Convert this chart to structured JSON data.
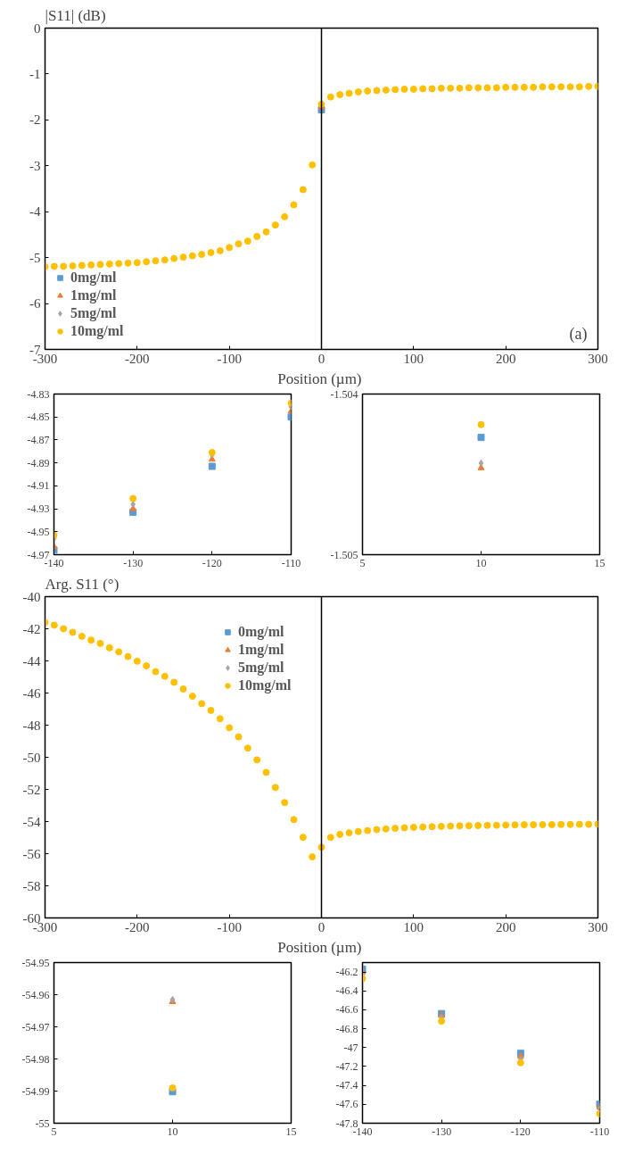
{
  "chart_data": [
    {
      "type": "scatter",
      "ylabel": "|S11| (dB)",
      "xlabel": "Position  (µm)",
      "xlim": [
        -300,
        300
      ],
      "ylim": [
        -7,
        0
      ],
      "xticks": [
        -300,
        -200,
        -100,
        0,
        100,
        200,
        300
      ],
      "yticks": [
        -7,
        -6,
        -5,
        -4,
        -3,
        -2,
        -1,
        0
      ],
      "legend": "bottom left",
      "annotations": [
        "(a)"
      ],
      "ref_lines": [
        {
          "axis": "x",
          "value": 0,
          "color": "#000000"
        }
      ],
      "x": [
        -300,
        -290,
        -280,
        -270,
        -260,
        -250,
        -240,
        -230,
        -220,
        -210,
        -200,
        -190,
        -180,
        -170,
        -160,
        -150,
        -140,
        -130,
        -120,
        -110,
        -100,
        -90,
        -80,
        -70,
        -60,
        -50,
        -40,
        -30,
        -20,
        -10,
        0,
        10,
        20,
        30,
        40,
        50,
        60,
        70,
        80,
        90,
        100,
        110,
        120,
        130,
        140,
        150,
        160,
        170,
        180,
        190,
        200,
        210,
        220,
        230,
        240,
        250,
        260,
        270,
        280,
        290,
        300
      ],
      "series": [
        {
          "name": "0mg/ml",
          "color": "#5b9bd5",
          "marker": "square",
          "values": [
            null,
            null,
            null,
            null,
            null,
            null,
            null,
            null,
            null,
            null,
            null,
            null,
            null,
            null,
            null,
            null,
            null,
            null,
            null,
            null,
            null,
            null,
            null,
            null,
            null,
            null,
            null,
            null,
            null,
            null,
            -1.78,
            null,
            null,
            null,
            null,
            null,
            null,
            null,
            null,
            null,
            null,
            null,
            null,
            null,
            null,
            null,
            null,
            null,
            null,
            null,
            null,
            null,
            null,
            null,
            null,
            null,
            null,
            null,
            null,
            null,
            null
          ]
        },
        {
          "name": "1mg/ml",
          "color": "#ed7d31",
          "marker": "triangle",
          "values": [
            null,
            null,
            null,
            null,
            null,
            null,
            null,
            null,
            null,
            null,
            null,
            null,
            null,
            null,
            null,
            null,
            null,
            null,
            null,
            null,
            null,
            null,
            null,
            null,
            null,
            null,
            null,
            null,
            null,
            null,
            -1.72,
            null,
            null,
            null,
            null,
            null,
            null,
            null,
            null,
            null,
            null,
            null,
            null,
            null,
            null,
            null,
            null,
            null,
            null,
            null,
            null,
            null,
            null,
            null,
            null,
            null,
            null,
            null,
            null,
            null,
            null
          ]
        },
        {
          "name": "5mg/ml",
          "color": "#a5a5a5",
          "marker": "diamond",
          "values": [
            null,
            null,
            null,
            null,
            null,
            null,
            null,
            null,
            null,
            null,
            null,
            null,
            null,
            null,
            null,
            null,
            null,
            null,
            null,
            null,
            null,
            null,
            null,
            null,
            null,
            null,
            null,
            null,
            null,
            null,
            null,
            null,
            null,
            null,
            null,
            null,
            null,
            null,
            null,
            null,
            null,
            null,
            null,
            null,
            null,
            null,
            null,
            null,
            null,
            null,
            null,
            null,
            null,
            null,
            null,
            null,
            null,
            null,
            null,
            null,
            null
          ]
        },
        {
          "name": "10mg/ml",
          "color": "#ffc000",
          "marker": "circle",
          "values": [
            -5.2,
            -5.19,
            -5.19,
            -5.18,
            -5.17,
            -5.16,
            -5.15,
            -5.14,
            -5.13,
            -5.12,
            -5.11,
            -5.09,
            -5.07,
            -5.05,
            -5.02,
            -4.99,
            -4.96,
            -4.93,
            -4.89,
            -4.85,
            -4.78,
            -4.7,
            -4.64,
            -4.54,
            -4.44,
            -4.29,
            -4.11,
            -3.85,
            -3.52,
            -2.98,
            -1.66,
            -1.5,
            -1.45,
            -1.42,
            -1.39,
            -1.37,
            -1.36,
            -1.35,
            -1.34,
            -1.33,
            -1.33,
            -1.32,
            -1.32,
            -1.31,
            -1.31,
            -1.31,
            -1.3,
            -1.3,
            -1.3,
            -1.3,
            -1.29,
            -1.29,
            -1.29,
            -1.29,
            -1.28,
            -1.28,
            -1.28,
            -1.28,
            -1.28,
            -1.27,
            -1.27
          ]
        }
      ]
    },
    {
      "type": "scatter",
      "xlim": [
        -140,
        -110
      ],
      "ylim": [
        -4.97,
        -4.83
      ],
      "xticks": [
        -140,
        -130,
        -120,
        -110
      ],
      "yticks": [
        -4.97,
        -4.95,
        -4.93,
        -4.91,
        -4.89,
        -4.87,
        -4.85,
        -4.83
      ],
      "x": [
        -140,
        -130,
        -120,
        -110
      ],
      "series": [
        {
          "color": "#5b9bd5",
          "marker": "square",
          "values": [
            -4.966,
            -4.933,
            -4.893,
            -4.85
          ]
        },
        {
          "color": "#ed7d31",
          "marker": "triangle",
          "values": [
            -4.963,
            -4.93,
            -4.887,
            -4.845
          ]
        },
        {
          "color": "#a5a5a5",
          "marker": "diamond",
          "values": [
            -4.956,
            -4.926,
            -4.883,
            -4.841
          ]
        },
        {
          "color": "#ffc000",
          "marker": "circle",
          "values": [
            -4.953,
            -4.921,
            -4.881,
            -4.838
          ]
        }
      ]
    },
    {
      "type": "scatter",
      "xlim": [
        5,
        15
      ],
      "ylim": [
        -1.505,
        -1.504
      ],
      "xticks": [
        5,
        10,
        15
      ],
      "yticks": [
        -1.505,
        -1.504
      ],
      "x": [
        10
      ],
      "series": [
        {
          "color": "#5b9bd5",
          "marker": "square",
          "values": [
            -1.50427
          ]
        },
        {
          "color": "#ed7d31",
          "marker": "triangle",
          "values": [
            -1.50446
          ]
        },
        {
          "color": "#a5a5a5",
          "marker": "diamond",
          "values": [
            -1.50443
          ]
        },
        {
          "color": "#ffc000",
          "marker": "circle",
          "values": [
            -1.50419
          ]
        }
      ]
    },
    {
      "type": "scatter",
      "ylabel": "Arg. S11 (°)",
      "xlabel": "Position  (µm)",
      "xlim": [
        -300,
        300
      ],
      "ylim": [
        -60,
        -40
      ],
      "xticks": [
        -300,
        -200,
        -100,
        0,
        100,
        200,
        300
      ],
      "yticks": [
        -60,
        -58,
        -56,
        -54,
        -52,
        -50,
        -48,
        -46,
        -44,
        -42,
        -40
      ],
      "legend": "top",
      "ref_lines": [
        {
          "axis": "x",
          "value": 0,
          "color": "#000000"
        }
      ],
      "x": [
        -300,
        -290,
        -280,
        -270,
        -260,
        -250,
        -240,
        -230,
        -220,
        -210,
        -200,
        -190,
        -180,
        -170,
        -160,
        -150,
        -140,
        -130,
        -120,
        -110,
        -100,
        -90,
        -80,
        -70,
        -60,
        -50,
        -40,
        -30,
        -20,
        -10,
        0,
        10,
        20,
        30,
        40,
        50,
        60,
        70,
        80,
        90,
        100,
        110,
        120,
        130,
        140,
        150,
        160,
        170,
        180,
        190,
        200,
        210,
        220,
        230,
        240,
        250,
        260,
        270,
        280,
        290,
        300
      ],
      "series": [
        {
          "name": "0mg/ml",
          "color": "#5b9bd5",
          "marker": "square",
          "values": [
            null,
            null,
            null,
            null,
            null,
            null,
            null,
            null,
            null,
            null,
            null,
            null,
            null,
            null,
            null,
            null,
            null,
            null,
            null,
            null,
            null,
            null,
            null,
            null,
            null,
            null,
            null,
            null,
            null,
            null,
            null,
            null,
            null,
            null,
            null,
            null,
            null,
            null,
            null,
            null,
            null,
            null,
            null,
            null,
            null,
            null,
            null,
            null,
            null,
            null,
            null,
            null,
            null,
            null,
            null,
            null,
            null,
            null,
            null,
            null,
            null
          ]
        },
        {
          "name": "1mg/ml",
          "color": "#ed7d31",
          "marker": "triangle",
          "values": [
            null,
            null,
            null,
            null,
            null,
            null,
            null,
            null,
            null,
            null,
            null,
            null,
            null,
            null,
            null,
            null,
            null,
            null,
            null,
            null,
            null,
            null,
            null,
            null,
            null,
            null,
            null,
            null,
            null,
            null,
            null,
            null,
            null,
            null,
            null,
            null,
            null,
            null,
            null,
            null,
            null,
            null,
            null,
            null,
            null,
            null,
            null,
            null,
            null,
            null,
            null,
            null,
            null,
            null,
            null,
            null,
            null,
            null,
            null,
            null,
            null
          ]
        },
        {
          "name": "5mg/ml",
          "color": "#a5a5a5",
          "marker": "diamond",
          "values": [
            null,
            null,
            null,
            null,
            null,
            null,
            null,
            null,
            null,
            null,
            null,
            null,
            null,
            null,
            null,
            null,
            null,
            null,
            null,
            null,
            null,
            null,
            null,
            null,
            null,
            null,
            null,
            null,
            null,
            null,
            null,
            null,
            null,
            null,
            null,
            null,
            null,
            null,
            null,
            null,
            null,
            null,
            null,
            null,
            null,
            null,
            null,
            null,
            null,
            null,
            null,
            null,
            null,
            null,
            null,
            null,
            null,
            null,
            null,
            null,
            null
          ]
        },
        {
          "name": "10mg/ml",
          "color": "#ffc000",
          "marker": "circle",
          "values": [
            -41.6,
            -41.78,
            -42.0,
            -42.22,
            -42.47,
            -42.71,
            -42.91,
            -43.18,
            -43.44,
            -43.73,
            -44.02,
            -44.31,
            -44.67,
            -44.96,
            -45.33,
            -45.75,
            -46.2,
            -46.66,
            -47.08,
            -47.6,
            -48.16,
            -48.73,
            -49.43,
            -50.16,
            -50.94,
            -51.88,
            -52.82,
            -53.88,
            -54.98,
            -56.2,
            -55.6,
            -54.99,
            -54.8,
            -54.7,
            -54.62,
            -54.56,
            -54.5,
            -54.46,
            -54.42,
            -54.39,
            -54.36,
            -54.34,
            -54.32,
            -54.3,
            -54.28,
            -54.27,
            -54.26,
            -54.25,
            -54.24,
            -54.23,
            -54.22,
            -54.21,
            -54.2,
            -54.2,
            -54.19,
            -54.19,
            -54.18,
            -54.18,
            -54.17,
            -54.17,
            -54.16
          ]
        }
      ]
    },
    {
      "type": "scatter",
      "xlim": [
        5,
        15
      ],
      "ylim": [
        -55,
        -54.95
      ],
      "xticks": [
        5,
        10,
        15
      ],
      "yticks": [
        -55,
        -54.99,
        -54.98,
        -54.97,
        -54.96,
        -54.95
      ],
      "x": [
        10
      ],
      "series": [
        {
          "color": "#5b9bd5",
          "marker": "square",
          "values": [
            -54.9902
          ]
        },
        {
          "color": "#ed7d31",
          "marker": "triangle",
          "values": [
            -54.9622
          ]
        },
        {
          "color": "#a5a5a5",
          "marker": "diamond",
          "values": [
            -54.9615
          ]
        },
        {
          "color": "#ffc000",
          "marker": "circle",
          "values": [
            -54.989
          ]
        }
      ]
    },
    {
      "type": "scatter",
      "xlim": [
        -140,
        -110
      ],
      "ylim": [
        -47.8,
        -46.1
      ],
      "xticks": [
        -140,
        -130,
        -120,
        -110
      ],
      "yticks": [
        -47.8,
        -47.6,
        -47.4,
        -47.2,
        -47,
        -46.8,
        -46.6,
        -46.4,
        -46.2
      ],
      "x": [
        -140,
        -130,
        -120,
        -110
      ],
      "series": [
        {
          "color": "#5b9bd5",
          "marker": "square",
          "values": [
            -46.17,
            -46.64,
            -47.06,
            -47.6
          ]
        },
        {
          "color": "#ed7d31",
          "marker": "triangle",
          "values": [
            -46.2,
            -46.66,
            -47.09,
            -47.63
          ]
        },
        {
          "color": "#a5a5a5",
          "marker": "diamond",
          "values": [
            -46.23,
            -46.68,
            -47.12,
            -47.65
          ]
        },
        {
          "color": "#ffc000",
          "marker": "circle",
          "values": [
            -46.27,
            -46.72,
            -47.16,
            -47.7
          ]
        }
      ]
    }
  ]
}
